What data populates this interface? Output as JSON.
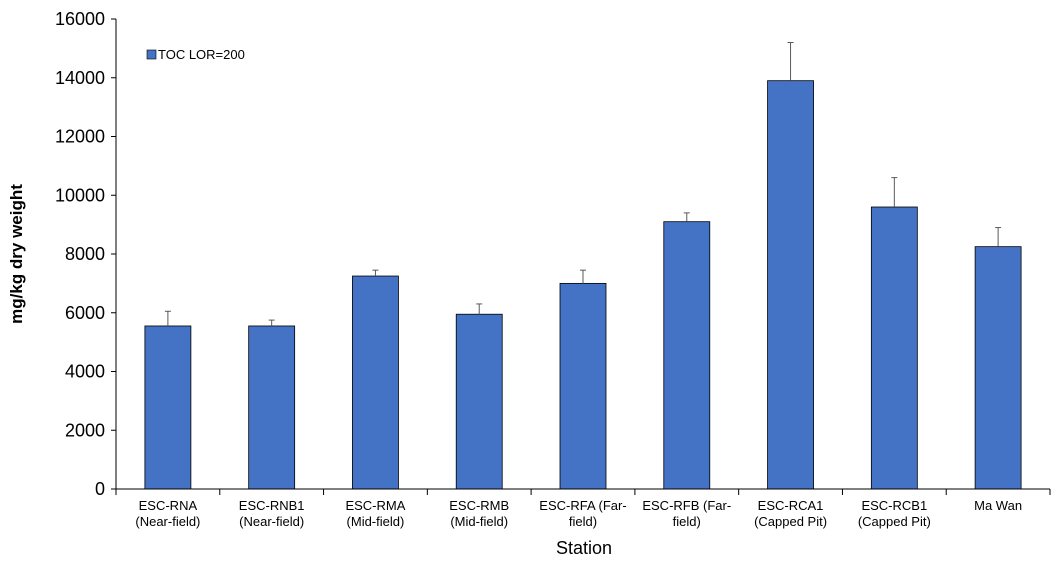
{
  "chart_data": {
    "type": "bar",
    "categories": [
      [
        "ESC-RNA",
        "(Near-field)"
      ],
      [
        "ESC-RNB1",
        "(Near-field)"
      ],
      [
        "ESC-RMA",
        "(Mid-field)"
      ],
      [
        "ESC-RMB",
        "(Mid-field)"
      ],
      [
        "ESC-RFA (Far-",
        "field)"
      ],
      [
        "ESC-RFB (Far-",
        "field)"
      ],
      [
        "ESC-RCA1",
        "(Capped Pit)"
      ],
      [
        "ESC-RCB1",
        "(Capped Pit)"
      ],
      [
        "Ma Wan"
      ]
    ],
    "series": [
      {
        "name": "TOC LOR=200",
        "values": [
          5550,
          5550,
          7250,
          5950,
          7000,
          9100,
          13900,
          9600,
          8250
        ],
        "error_plus": [
          500,
          200,
          200,
          350,
          450,
          300,
          1300,
          1000,
          650
        ]
      }
    ],
    "xlabel": "Station",
    "ylabel": "mg/kg dry weight",
    "ylim": [
      0,
      16000
    ],
    "yticks": [
      0,
      2000,
      4000,
      6000,
      8000,
      10000,
      12000,
      14000,
      16000
    ],
    "grid": false,
    "legend": "top-left",
    "colors": {
      "bar": "#4472C4",
      "bar_edge": "#000000",
      "error_bar": "#595959",
      "axis": "#000000"
    }
  }
}
